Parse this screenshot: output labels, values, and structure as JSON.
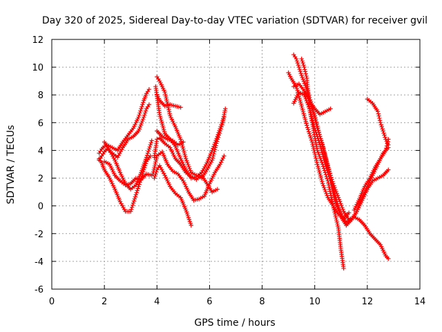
{
  "chart_data": {
    "type": "scatter",
    "title": "Day 320 of 2025, Sidereal Day-to-day VTEC variation (SDTVAR) for receiver gvil",
    "xlabel": "GPS time / hours",
    "ylabel": "SDTVAR / TECUs",
    "xlim": [
      0,
      14
    ],
    "ylim": [
      -6,
      12
    ],
    "xticks": [
      "0",
      "2",
      "4",
      "6",
      "8",
      "10",
      "12",
      "14"
    ],
    "yticks": [
      "-6",
      "-4",
      "-2",
      "0",
      "2",
      "4",
      "6",
      "8",
      "10",
      "12"
    ],
    "grid": true,
    "legend": "none",
    "marker": "plus",
    "color": "#ff0000",
    "series": [
      {
        "x": [
          1.8,
          1.9,
          2.0,
          2.1,
          2.3,
          2.5,
          2.7,
          2.9,
          3.1,
          3.3,
          3.5,
          3.6,
          3.7
        ],
        "y": [
          3.8,
          4.1,
          4.3,
          4.4,
          4.2,
          4.0,
          4.6,
          5.1,
          5.6,
          6.4,
          7.6,
          8.1,
          8.4
        ]
      },
      {
        "x": [
          1.8,
          1.9,
          2.0,
          2.1,
          2.3,
          2.5,
          2.7,
          2.9,
          3.1,
          3.3,
          3.5,
          3.6,
          3.7
        ],
        "y": [
          3.3,
          3.6,
          3.9,
          4.1,
          3.8,
          3.5,
          4.2,
          4.8,
          5.0,
          5.4,
          6.4,
          7.0,
          7.3
        ]
      },
      {
        "x": [
          1.8,
          1.9,
          2.0,
          2.2,
          2.4,
          2.6,
          2.8,
          3.0,
          3.2,
          3.4,
          3.6,
          3.75
        ],
        "y": [
          3.4,
          3.1,
          2.6,
          2.0,
          1.2,
          0.3,
          -0.4,
          -0.4,
          0.8,
          2.0,
          3.2,
          3.6
        ]
      },
      {
        "x": [
          2.0,
          2.2,
          2.4,
          2.6,
          2.8,
          3.0,
          3.2,
          3.4,
          3.6,
          3.8
        ],
        "y": [
          4.6,
          4.0,
          3.3,
          2.4,
          1.6,
          1.2,
          1.5,
          2.4,
          3.5,
          4.7
        ]
      },
      {
        "x": [
          2.0,
          2.2,
          2.4,
          2.6,
          2.8,
          3.0,
          3.2,
          3.4,
          3.6,
          3.8
        ],
        "y": [
          3.2,
          3.0,
          2.2,
          1.8,
          1.5,
          1.6,
          2.0,
          1.9,
          2.3,
          2.2
        ]
      },
      {
        "x": [
          3.9,
          4.0,
          4.1,
          4.3,
          4.5,
          4.7,
          4.9,
          5.1,
          5.3,
          5.5,
          5.7,
          5.9,
          6.1,
          6.3
        ],
        "y": [
          3.5,
          4.8,
          4.9,
          4.5,
          4.2,
          3.4,
          3.0,
          2.4,
          2.1,
          1.9,
          2.2,
          1.6,
          1.0,
          1.2
        ]
      },
      {
        "x": [
          3.85,
          4.0,
          4.2,
          4.4,
          4.6,
          4.8,
          5.0,
          5.2,
          5.4,
          5.6,
          5.8,
          6.0,
          6.2,
          6.4,
          6.55
        ],
        "y": [
          2.3,
          3.6,
          3.9,
          3.0,
          2.5,
          2.3,
          1.8,
          1.0,
          0.4,
          0.5,
          0.7,
          1.6,
          2.4,
          3.0,
          3.6
        ]
      },
      {
        "x": [
          3.9,
          4.0,
          4.1,
          4.3,
          4.5,
          4.7,
          4.9,
          5.1,
          5.3
        ],
        "y": [
          2.0,
          2.6,
          2.9,
          2.2,
          1.4,
          0.9,
          0.6,
          -0.3,
          -1.4
        ]
      },
      {
        "x": [
          4.0,
          4.1,
          4.3,
          4.5,
          4.7,
          4.9,
          5.1,
          5.3,
          5.5,
          5.7,
          5.9,
          6.1,
          6.3,
          6.5,
          6.6
        ],
        "y": [
          9.3,
          9.0,
          8.2,
          6.5,
          5.7,
          4.8,
          3.4,
          2.4,
          2.2,
          2.0,
          2.6,
          3.3,
          4.8,
          6.0,
          7.0
        ]
      },
      {
        "x": [
          3.95,
          4.1,
          4.3,
          4.5,
          4.7,
          4.9,
          5.1,
          5.3,
          5.5,
          5.7,
          5.9,
          6.1,
          6.3,
          6.55
        ],
        "y": [
          8.6,
          6.6,
          5.2,
          4.8,
          4.3,
          3.4,
          2.6,
          2.0,
          2.1,
          2.4,
          3.1,
          4.0,
          5.0,
          6.4
        ]
      },
      {
        "x": [
          4.0,
          4.1,
          4.3,
          4.5,
          4.7,
          4.9
        ],
        "y": [
          8.0,
          7.6,
          7.2,
          7.3,
          7.2,
          7.1
        ]
      },
      {
        "x": [
          4.0,
          4.2,
          4.4,
          4.6,
          4.8,
          5.0
        ],
        "y": [
          5.4,
          5.0,
          4.8,
          4.7,
          4.4,
          4.6
        ]
      },
      {
        "x": [
          9.0,
          9.1,
          9.3,
          9.5,
          9.7,
          9.9,
          10.1,
          10.3,
          10.5,
          10.7,
          10.9,
          11.1,
          11.3
        ],
        "y": [
          9.6,
          9.2,
          8.6,
          7.2,
          5.8,
          4.6,
          3.0,
          1.6,
          0.6,
          0.0,
          -0.6,
          -0.9,
          -0.5
        ]
      },
      {
        "x": [
          9.2,
          9.3,
          9.5,
          9.7,
          9.9,
          10.1,
          10.3,
          10.5,
          10.7,
          10.9,
          11.1,
          11.3,
          11.5,
          11.7,
          11.9,
          12.1,
          12.3,
          12.5,
          12.7,
          12.8
        ],
        "y": [
          10.9,
          10.6,
          9.4,
          8.4,
          7.2,
          5.6,
          4.4,
          2.8,
          1.6,
          0.6,
          -0.4,
          -1.0,
          -0.8,
          -1.0,
          -1.4,
          -2.0,
          -2.4,
          -2.8,
          -3.6,
          -3.8
        ]
      },
      {
        "x": [
          9.5,
          9.6,
          9.7,
          9.8,
          9.9,
          10.0,
          10.1,
          10.3,
          10.5,
          10.7,
          10.9,
          11.0,
          11.1
        ],
        "y": [
          10.6,
          10.0,
          9.2,
          7.0,
          6.0,
          5.0,
          4.0,
          3.0,
          1.8,
          0.0,
          -1.6,
          -3.2,
          -4.5
        ]
      },
      {
        "x": [
          9.2,
          9.4,
          9.6,
          9.8,
          10.0,
          10.2,
          10.4,
          10.6,
          10.8,
          11.0,
          11.2,
          11.4,
          11.6,
          11.8,
          12.0,
          12.2,
          12.4,
          12.6,
          12.8
        ],
        "y": [
          8.6,
          8.8,
          8.3,
          7.6,
          6.5,
          5.0,
          3.6,
          2.2,
          0.6,
          -0.8,
          -1.4,
          -1.0,
          -0.4,
          0.4,
          1.2,
          1.8,
          2.0,
          2.2,
          2.6
        ]
      },
      {
        "x": [
          9.2,
          9.4,
          9.6,
          9.8,
          10.0,
          10.2,
          10.4,
          10.6,
          10.8,
          11.0,
          11.2,
          11.4,
          11.6,
          11.8,
          12.0,
          12.2,
          12.4,
          12.6,
          12.8
        ],
        "y": [
          7.4,
          8.2,
          8.0,
          7.0,
          5.6,
          4.4,
          3.0,
          1.8,
          0.2,
          -0.6,
          -1.2,
          -1.0,
          -0.4,
          0.6,
          1.4,
          2.2,
          3.0,
          3.8,
          4.2
        ]
      },
      {
        "x": [
          9.6,
          9.8,
          10.0,
          10.2,
          10.4,
          10.6
        ],
        "y": [
          8.2,
          7.6,
          7.0,
          6.6,
          6.8,
          7.0
        ]
      },
      {
        "x": [
          12.0,
          12.2,
          12.4,
          12.5,
          12.6,
          12.7,
          12.8
        ],
        "y": [
          7.7,
          7.4,
          6.8,
          6.0,
          5.4,
          4.8,
          4.4
        ]
      },
      {
        "x": [
          11.5,
          11.7,
          11.9,
          12.1,
          12.3,
          12.5,
          12.7,
          12.8
        ],
        "y": [
          -0.3,
          0.5,
          1.4,
          2.0,
          2.8,
          3.4,
          4.0,
          4.8
        ]
      }
    ]
  }
}
